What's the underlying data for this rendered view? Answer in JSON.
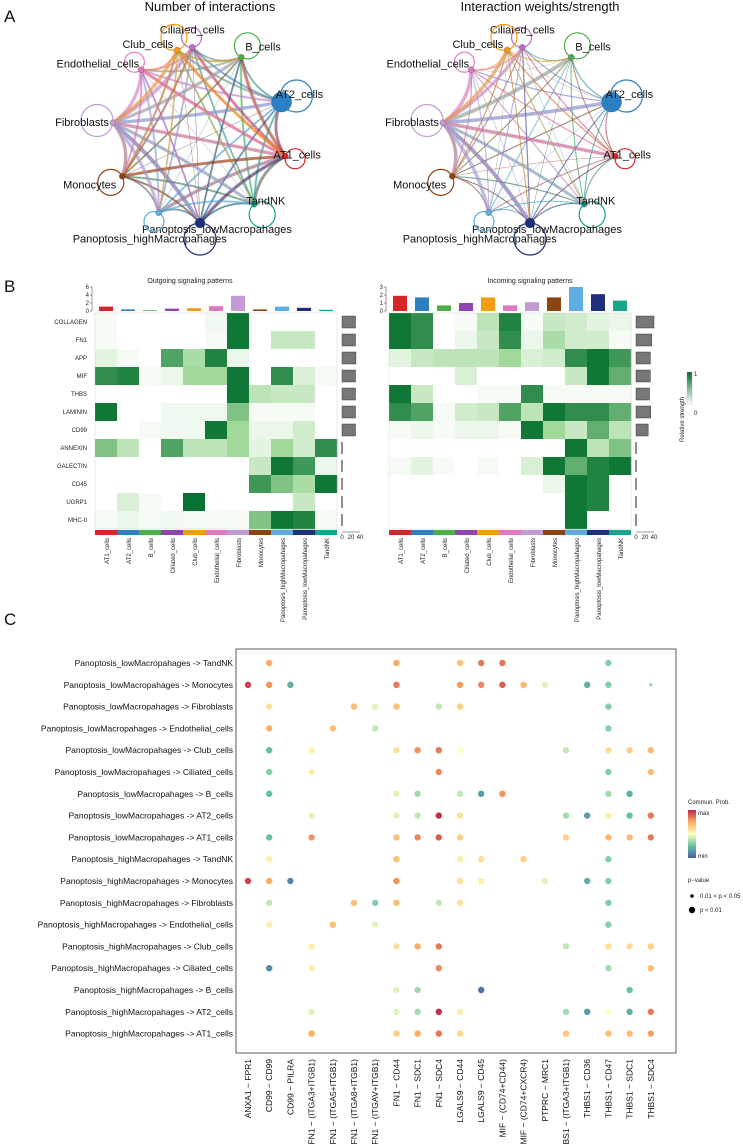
{
  "panel_labels": {
    "a": "A",
    "b": "B",
    "c": "C"
  },
  "panel_a": {
    "titles": [
      "Number of interactions",
      "Interaction weights/strength"
    ],
    "nodes": [
      {
        "name": "Ciliated_cells",
        "color": "#c06cc8",
        "size": 3
      },
      {
        "name": "B_cells",
        "color": "#4daf4a",
        "size": 3
      },
      {
        "name": "AT2_cells",
        "color": "#2b7fc2",
        "size": 10
      },
      {
        "name": "AT1_cells",
        "color": "#d62728",
        "size": 3
      },
      {
        "name": "TandNK",
        "color": "#17a589",
        "size": 3
      },
      {
        "name": "Panoptosis_lowMacropahages",
        "color": "#1f2f7a",
        "size": 5
      },
      {
        "name": "Panoptosis_highMacropahages",
        "color": "#5dade2",
        "size": 3
      },
      {
        "name": "Monocytes",
        "color": "#8b4513",
        "size": 3
      },
      {
        "name": "Fibroblasts",
        "color": "#c39bd3",
        "size": 3
      },
      {
        "name": "Endothelial_cells",
        "color": "#e377c2",
        "size": 3
      },
      {
        "name": "Club_cells",
        "color": "#f39c12",
        "size": 3
      }
    ]
  },
  "panel_b": {
    "titles": [
      "Outgoing signaling patterns",
      "Incoming signaling patterns"
    ],
    "pathways": [
      "COLLAGEN",
      "FN1",
      "APP",
      "MIF",
      "THBS",
      "LAMININ",
      "CD99",
      "ANNEXIN",
      "GALECTIN",
      "CD45",
      "UGRP1",
      "MHC-II"
    ],
    "cells": [
      "AT1_cells",
      "AT2_cells",
      "B_cells",
      "Ciliated_cells",
      "Club_cells",
      "Endothelial_cells",
      "Fibroblasts",
      "Monocytes",
      "Panoptosis_highMacropahages",
      "Panoptosis_lowMacropahages",
      "TandNK"
    ],
    "cell_colors": [
      "#d62728",
      "#2b7fc2",
      "#4daf4a",
      "#8e44ad",
      "#f39c12",
      "#e377c2",
      "#c39bd3",
      "#8b4513",
      "#5dade2",
      "#1f2f7a",
      "#17a589"
    ],
    "outgoing": [
      [
        0.05,
        0,
        0,
        0,
        0,
        0.08,
        0.95,
        0,
        0,
        0,
        0
      ],
      [
        0.05,
        0,
        0,
        0,
        0,
        0.05,
        0.95,
        0,
        0.3,
        0.3,
        0
      ],
      [
        0.15,
        0.05,
        0,
        0.75,
        0.45,
        0.9,
        0.1,
        0,
        0,
        0,
        0
      ],
      [
        0.85,
        0.9,
        0.05,
        0.1,
        0.5,
        0.5,
        0.95,
        0,
        0.85,
        0.2,
        0.05
      ],
      [
        0,
        0,
        0,
        0,
        0,
        0,
        0.95,
        0.35,
        0.3,
        0.3,
        0
      ],
      [
        0.95,
        0,
        0,
        0.08,
        0.08,
        0.08,
        0.6,
        0.05,
        0.05,
        0.05,
        0
      ],
      [
        0,
        0,
        0.05,
        0.08,
        0.08,
        0.95,
        0.5,
        0.1,
        0.1,
        0.25,
        0
      ],
      [
        0.6,
        0.35,
        0,
        0.75,
        0.35,
        0.35,
        0.5,
        0.15,
        0.5,
        0.25,
        0.85
      ],
      [
        0,
        0,
        0,
        0,
        0,
        0,
        0,
        0.3,
        0.95,
        0.8,
        0.1
      ],
      [
        0,
        0,
        0,
        0,
        0,
        0,
        0,
        0.8,
        0.6,
        0.45,
        0.95
      ],
      [
        0,
        0.2,
        0.05,
        0,
        0.98,
        0,
        0,
        0,
        0,
        0.3,
        0
      ],
      [
        0.05,
        0.1,
        0.05,
        0.08,
        0.05,
        0.05,
        0.05,
        0.6,
        0.95,
        0.9,
        0.05
      ]
    ],
    "incoming": [
      [
        0.95,
        0.85,
        0,
        0.05,
        0.35,
        0.9,
        0.05,
        0.3,
        0.25,
        0.15,
        0.1
      ],
      [
        0.95,
        0.85,
        0,
        0.1,
        0.3,
        0.85,
        0.1,
        0.45,
        0.25,
        0.25,
        0.05
      ],
      [
        0.15,
        0.3,
        0.35,
        0.35,
        0.35,
        0.5,
        0.2,
        0.25,
        0.85,
        0.95,
        0.8
      ],
      [
        0,
        0,
        0,
        0.2,
        0,
        0,
        0,
        0,
        0.3,
        0.95,
        0.7
      ],
      [
        0.95,
        0.3,
        0,
        0,
        0.05,
        0.05,
        0.85,
        0.05,
        0.05,
        0.05,
        0.05
      ],
      [
        0.85,
        0.75,
        0.05,
        0.25,
        0.3,
        0.75,
        0.35,
        0.95,
        0.85,
        0.85,
        0.7
      ],
      [
        0.05,
        0.1,
        0.05,
        0.1,
        0.1,
        0.05,
        0.95,
        0.5,
        0.3,
        0.7,
        0.35
      ],
      [
        0,
        0,
        0,
        0,
        0,
        0,
        0,
        0,
        0.95,
        0.35,
        0.6
      ],
      [
        0.05,
        0.15,
        0.05,
        0,
        0.05,
        0,
        0.2,
        0.95,
        0.7,
        0.9,
        0.95
      ],
      [
        0,
        0,
        0,
        0,
        0,
        0,
        0,
        0.1,
        0.95,
        0.9,
        0
      ],
      [
        0,
        0,
        0,
        0,
        0,
        0,
        0,
        0,
        0.95,
        0.9,
        0
      ],
      [
        0,
        0,
        0,
        0,
        0,
        0,
        0,
        0,
        0.95,
        0,
        0
      ]
    ],
    "outgoing_totals": [
      1.1,
      0.4,
      0.2,
      0.6,
      0.7,
      1.2,
      3.8,
      0.4,
      1.1,
      0.8,
      0.3
    ],
    "incoming_totals": [
      1.9,
      1.7,
      0.7,
      1.0,
      1.7,
      0.7,
      1.1,
      1.7,
      3.0,
      2.1,
      1.3
    ],
    "outgoing_axis": [
      "0",
      "2",
      "4",
      "6"
    ],
    "incoming_axis": [
      "0",
      "1",
      "2",
      "3"
    ],
    "outgoing_row_totals": [
      30,
      30,
      31,
      30,
      30,
      30,
      30,
      0,
      0,
      0,
      0,
      0
    ],
    "incoming_row_totals": [
      40,
      35,
      32,
      32,
      30,
      33,
      27,
      0,
      0,
      0,
      0,
      0
    ],
    "rowbar_axis": [
      "0",
      "20",
      "40"
    ],
    "legend_title": "Relative strength",
    "legend_max": "1",
    "legend_min": "0"
  },
  "panel_c": {
    "pairs": [
      "Panoptosis_lowMacropahages -> TandNK",
      "Panoptosis_lowMacropahages -> Monocytes",
      "Panoptosis_lowMacropahages -> Fibroblasts",
      "Panoptosis_lowMacropahages -> Endothelial_cells",
      "Panoptosis_lowMacropahages -> Club_cells",
      "Panoptosis_lowMacropahages -> Ciliated_cells",
      "Panoptosis_lowMacropahages -> B_cells",
      "Panoptosis_lowMacropahages -> AT2_cells",
      "Panoptosis_lowMacropahages -> AT1_cells",
      "Panoptosis_highMacropahages -> TandNK",
      "Panoptosis_highMacropahages -> Monocytes",
      "Panoptosis_highMacropahages -> Fibroblasts",
      "Panoptosis_highMacropahages -> Endothelial_cells",
      "Panoptosis_highMacropahages -> Club_cells",
      "Panoptosis_highMacropahages -> Ciliated_cells",
      "Panoptosis_highMacropahages -> B_cells",
      "Panoptosis_highMacropahages -> AT2_cells",
      "Panoptosis_highMacropahages -> AT1_cells"
    ],
    "lr": [
      "ANXA1 − FPR1",
      "CD99 − CD99",
      "CD99 − PILRA",
      "FN1 − (ITGA3+ITGB1)",
      "FN1 − (ITGA5+ITGB1)",
      "FN1 − (ITGA8+ITGB1)",
      "FN1 − (ITGAV+ITGB1)",
      "FN1 − CD44",
      "FN1 − SDC1",
      "FN1 − SDC4",
      "LGALS9 − CD44",
      "LGALS9 − CD45",
      "MIF − (CD74+CD44)",
      "MIF − (CD74+CXCR4)",
      "PTPRC − MRC1",
      "THBS1 − (ITGA3+ITGB1)",
      "THBS1 − CD36",
      "THBS1 − CD47",
      "THBS1 − SDC1",
      "THBS1 − SDC4"
    ],
    "legend_title": "Commun. Prob.",
    "legend_max": "max",
    "legend_min": "min",
    "pvalue_title": "p−value",
    "pvalue_labels": [
      "0.01 < p < 0.05",
      "p < 0.01"
    ],
    "dots": [
      [
        0,
        1,
        0.75,
        1
      ],
      [
        0,
        7,
        0.75,
        1
      ],
      [
        0,
        10,
        0.7,
        1
      ],
      [
        0,
        11,
        0.85,
        1
      ],
      [
        0,
        12,
        0.85,
        1
      ],
      [
        0,
        17,
        0.3,
        1
      ],
      [
        1,
        0,
        0.95,
        1
      ],
      [
        1,
        1,
        0.8,
        1
      ],
      [
        1,
        2,
        0.2,
        1
      ],
      [
        1,
        7,
        0.85,
        1
      ],
      [
        1,
        10,
        0.78,
        1
      ],
      [
        1,
        11,
        0.82,
        1
      ],
      [
        1,
        12,
        0.9,
        1
      ],
      [
        1,
        13,
        0.72,
        1
      ],
      [
        1,
        14,
        0.45,
        1
      ],
      [
        1,
        16,
        0.2,
        1
      ],
      [
        1,
        17,
        0.3,
        1
      ],
      [
        1,
        19,
        0.35,
        0
      ],
      [
        2,
        1,
        0.6,
        1
      ],
      [
        2,
        5,
        0.7,
        1
      ],
      [
        2,
        6,
        0.45,
        1
      ],
      [
        2,
        7,
        0.7,
        1
      ],
      [
        2,
        9,
        0.4,
        1
      ],
      [
        2,
        10,
        0.65,
        1
      ],
      [
        2,
        17,
        0.3,
        1
      ],
      [
        3,
        1,
        0.75,
        1
      ],
      [
        3,
        4,
        0.7,
        1
      ],
      [
        3,
        6,
        0.4,
        1
      ],
      [
        3,
        17,
        0.3,
        1
      ],
      [
        4,
        1,
        0.25,
        1
      ],
      [
        4,
        3,
        0.55,
        1
      ],
      [
        4,
        7,
        0.6,
        1
      ],
      [
        4,
        8,
        0.8,
        1
      ],
      [
        4,
        9,
        0.85,
        1
      ],
      [
        4,
        10,
        0.5,
        1
      ],
      [
        4,
        15,
        0.4,
        1
      ],
      [
        4,
        17,
        0.6,
        1
      ],
      [
        4,
        18,
        0.65,
        1
      ],
      [
        4,
        19,
        0.72,
        1
      ],
      [
        5,
        1,
        0.3,
        1
      ],
      [
        5,
        3,
        0.55,
        1
      ],
      [
        5,
        9,
        0.82,
        1
      ],
      [
        5,
        17,
        0.3,
        1
      ],
      [
        5,
        19,
        0.7,
        1
      ],
      [
        6,
        1,
        0.25,
        1
      ],
      [
        6,
        7,
        0.45,
        1
      ],
      [
        6,
        8,
        0.35,
        1
      ],
      [
        6,
        10,
        0.4,
        1
      ],
      [
        6,
        11,
        0.15,
        1
      ],
      [
        6,
        12,
        0.8,
        1
      ],
      [
        6,
        17,
        0.35,
        1
      ],
      [
        6,
        18,
        0.2,
        1
      ],
      [
        7,
        3,
        0.45,
        1
      ],
      [
        7,
        7,
        0.45,
        1
      ],
      [
        7,
        8,
        0.4,
        1
      ],
      [
        7,
        9,
        0.98,
        1
      ],
      [
        7,
        10,
        0.6,
        1
      ],
      [
        7,
        15,
        0.35,
        1
      ],
      [
        7,
        16,
        0.15,
        1
      ],
      [
        7,
        17,
        0.55,
        1
      ],
      [
        7,
        18,
        0.25,
        1
      ],
      [
        7,
        19,
        0.85,
        1
      ],
      [
        8,
        1,
        0.25,
        1
      ],
      [
        8,
        3,
        0.8,
        1
      ],
      [
        8,
        7,
        0.7,
        1
      ],
      [
        8,
        8,
        0.82,
        1
      ],
      [
        8,
        9,
        0.9,
        1
      ],
      [
        8,
        10,
        0.65,
        1
      ],
      [
        8,
        15,
        0.65,
        1
      ],
      [
        8,
        17,
        0.72,
        1
      ],
      [
        8,
        18,
        0.72,
        1
      ],
      [
        8,
        19,
        0.85,
        1
      ],
      [
        9,
        1,
        0.55,
        1
      ],
      [
        9,
        7,
        0.7,
        1
      ],
      [
        9,
        10,
        0.55,
        1
      ],
      [
        9,
        11,
        0.6,
        1
      ],
      [
        9,
        13,
        0.65,
        1
      ],
      [
        9,
        17,
        0.3,
        1
      ],
      [
        10,
        0,
        0.95,
        1
      ],
      [
        10,
        1,
        0.75,
        1
      ],
      [
        10,
        2,
        0.1,
        1
      ],
      [
        10,
        7,
        0.8,
        1
      ],
      [
        10,
        10,
        0.6,
        1
      ],
      [
        10,
        11,
        0.55,
        1
      ],
      [
        10,
        14,
        0.45,
        1
      ],
      [
        10,
        16,
        0.2,
        1
      ],
      [
        10,
        17,
        0.3,
        1
      ],
      [
        11,
        1,
        0.4,
        1
      ],
      [
        11,
        5,
        0.7,
        1
      ],
      [
        11,
        6,
        0.3,
        1
      ],
      [
        11,
        7,
        0.7,
        1
      ],
      [
        11,
        9,
        0.4,
        1
      ],
      [
        11,
        10,
        0.6,
        1
      ],
      [
        11,
        17,
        0.3,
        1
      ],
      [
        12,
        1,
        0.55,
        1
      ],
      [
        12,
        4,
        0.7,
        1
      ],
      [
        12,
        6,
        0.45,
        1
      ],
      [
        12,
        17,
        0.3,
        1
      ],
      [
        13,
        3,
        0.55,
        1
      ],
      [
        13,
        7,
        0.6,
        1
      ],
      [
        13,
        8,
        0.75,
        1
      ],
      [
        13,
        9,
        0.85,
        1
      ],
      [
        13,
        15,
        0.4,
        1
      ],
      [
        13,
        17,
        0.6,
        1
      ],
      [
        13,
        18,
        0.62,
        1
      ],
      [
        13,
        19,
        0.65,
        1
      ],
      [
        14,
        1,
        0.1,
        1
      ],
      [
        14,
        3,
        0.55,
        1
      ],
      [
        14,
        9,
        0.82,
        1
      ],
      [
        14,
        17,
        0.35,
        1
      ],
      [
        14,
        19,
        0.7,
        1
      ],
      [
        15,
        7,
        0.45,
        1
      ],
      [
        15,
        8,
        0.35,
        1
      ],
      [
        15,
        11,
        0.05,
        1
      ],
      [
        15,
        18,
        0.25,
        1
      ],
      [
        16,
        3,
        0.45,
        1
      ],
      [
        16,
        7,
        0.45,
        1
      ],
      [
        16,
        8,
        0.35,
        1
      ],
      [
        16,
        9,
        0.98,
        1
      ],
      [
        16,
        10,
        0.55,
        1
      ],
      [
        16,
        15,
        0.35,
        1
      ],
      [
        16,
        16,
        0.15,
        1
      ],
      [
        16,
        17,
        0.5,
        1
      ],
      [
        16,
        18,
        0.2,
        1
      ],
      [
        16,
        19,
        0.85,
        1
      ],
      [
        17,
        3,
        0.75,
        1
      ],
      [
        17,
        7,
        0.65,
        1
      ],
      [
        17,
        8,
        0.75,
        1
      ],
      [
        17,
        9,
        0.85,
        1
      ],
      [
        17,
        10,
        0.62,
        1
      ],
      [
        17,
        15,
        0.68,
        1
      ],
      [
        17,
        17,
        0.7,
        1
      ],
      [
        17,
        18,
        0.7,
        1
      ],
      [
        17,
        19,
        0.78,
        1
      ]
    ]
  }
}
